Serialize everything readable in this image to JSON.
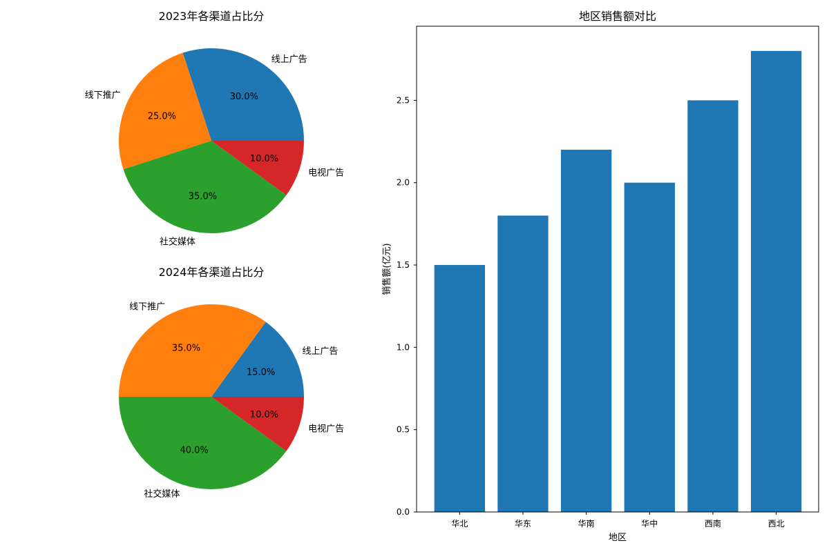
{
  "chart_data": [
    {
      "type": "pie",
      "title": "2023年各渠道占比分",
      "categories": [
        "线上广告",
        "线下推广",
        "社交媒体",
        "电视广告"
      ],
      "values": [
        30.0,
        25.0,
        35.0,
        10.0
      ],
      "value_labels": [
        "30.0%",
        "25.0%",
        "35.0%",
        "10.0%"
      ],
      "colors": [
        "#1f77b4",
        "#ff7f0e",
        "#2ca02c",
        "#d62728"
      ],
      "start_angle_deg": 0,
      "direction": "counterclockwise"
    },
    {
      "type": "pie",
      "title": "2024年各渠道占比分",
      "categories": [
        "线上广告",
        "线下推广",
        "社交媒体",
        "电视广告"
      ],
      "values": [
        15.0,
        35.0,
        40.0,
        10.0
      ],
      "value_labels": [
        "15.0%",
        "35.0%",
        "40.0%",
        "10.0%"
      ],
      "colors": [
        "#1f77b4",
        "#ff7f0e",
        "#2ca02c",
        "#d62728"
      ],
      "start_angle_deg": 0,
      "direction": "counterclockwise"
    },
    {
      "type": "bar",
      "title": "地区销售额对比",
      "categories": [
        "华北",
        "华东",
        "华南",
        "华中",
        "西南",
        "西北"
      ],
      "values": [
        1.5,
        1.8,
        2.2,
        2.0,
        2.5,
        2.8
      ],
      "xlabel": "地区",
      "ylabel": "销售额(亿元)",
      "ylim": [
        0,
        2.95
      ],
      "yticks": [
        0.0,
        0.5,
        1.0,
        1.5,
        2.0,
        2.5
      ],
      "ytick_labels": [
        "0.0",
        "0.5",
        "1.0",
        "1.5",
        "2.0",
        "2.5"
      ],
      "bar_color": "#1f77b4",
      "grid": false
    }
  ]
}
